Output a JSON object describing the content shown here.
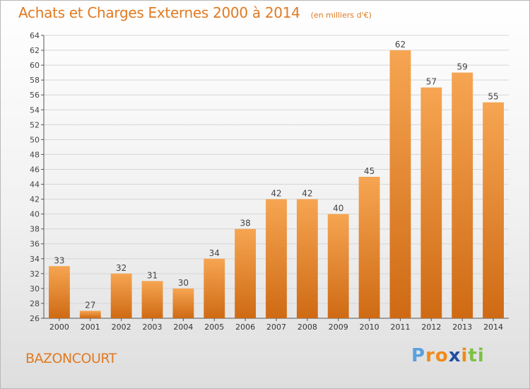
{
  "chart_data": {
    "type": "bar",
    "title": "Achats et Charges Externes 2000 à 2014",
    "subtitle": "(en milliers d'€)",
    "categories": [
      "2000",
      "2001",
      "2002",
      "2003",
      "2004",
      "2005",
      "2006",
      "2007",
      "2008",
      "2009",
      "2010",
      "2011",
      "2012",
      "2013",
      "2014"
    ],
    "values": [
      33,
      27,
      32,
      31,
      30,
      34,
      38,
      42,
      42,
      40,
      45,
      62,
      57,
      59,
      55
    ],
    "ylim": [
      26,
      64
    ],
    "yticks": [
      26,
      28,
      30,
      32,
      34,
      36,
      38,
      40,
      42,
      44,
      46,
      48,
      50,
      52,
      54,
      56,
      58,
      60,
      62,
      64
    ],
    "grid": true,
    "bar_color_top": "#f6a552",
    "bar_color_bottom": "#cf6a14",
    "grid_color": "#d6d6d6"
  },
  "footer": {
    "commune": "BAZONCOURT",
    "logo_letters": [
      "P",
      "r",
      "o",
      "x",
      "i",
      "t",
      "i"
    ],
    "logo_colors": [
      "#5aa0e0",
      "#f08a1a",
      "#f08a1a",
      "#1f4fa0",
      "#f08a1a",
      "#7cc243",
      "#7cc243"
    ]
  }
}
